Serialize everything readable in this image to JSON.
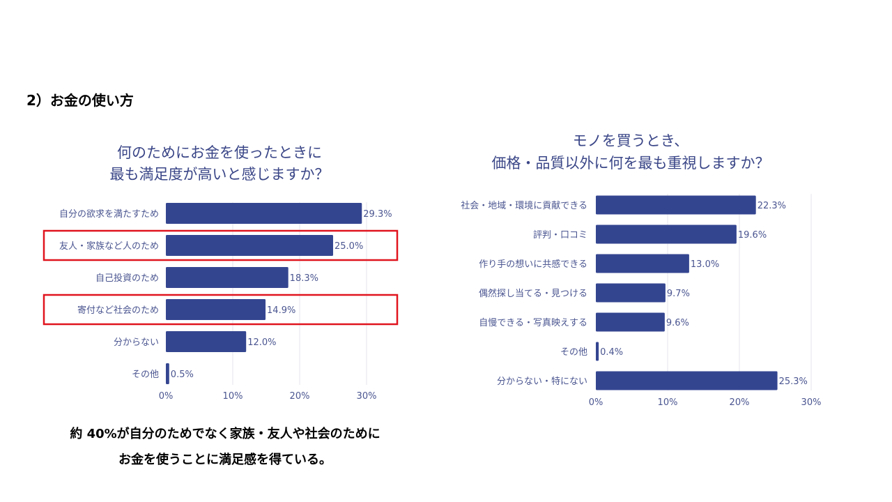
{
  "heading": "2）お金の使い方",
  "footer": {
    "line1": "約 40%が自分のためでなく家族・友人や社会のために",
    "line2": "お金を使うことに満足感を得ている。"
  },
  "colors": {
    "bar": "#344590",
    "highlight": "#e0141e",
    "grid": "#e4e6ee"
  },
  "chart_data": [
    {
      "type": "bar",
      "orientation": "horizontal",
      "title": [
        "何のためにお金を使ったときに",
        "最も満足度が高いと感じますか？"
      ],
      "categories": [
        "自分の欲求を満たすため",
        "友人・家族など人のため",
        "自己投資のため",
        "寄付など社会のため",
        "分からない",
        "その他"
      ],
      "values": [
        29.3,
        25.0,
        18.3,
        14.9,
        12.0,
        0.5
      ],
      "value_labels": [
        "29.3%",
        "25.0%",
        "18.3%",
        "14.9%",
        "12.0%",
        "0.5%"
      ],
      "highlighted": [
        1,
        3
      ],
      "xlim": [
        0,
        30
      ],
      "xticks": [
        "0%",
        "10%",
        "20%",
        "30%"
      ],
      "grid": true
    },
    {
      "type": "bar",
      "orientation": "horizontal",
      "title": [
        "モノを買うとき、",
        "価格・品質以外に何を最も重視しますか？"
      ],
      "categories": [
        "社会・地域・環境に貢献できる",
        "評判・口コミ",
        "作り手の想いに共感できる",
        "偶然探し当てる・見つける",
        "自慢できる・写真映えする",
        "その他",
        "分からない・特にない"
      ],
      "values": [
        22.3,
        19.6,
        13.0,
        9.7,
        9.6,
        0.4,
        25.3
      ],
      "value_labels": [
        "22.3%",
        "19.6%",
        "13.0%",
        "9.7%",
        "9.6%",
        "0.4%",
        "25.3%"
      ],
      "highlighted": [],
      "xlim": [
        0,
        30
      ],
      "xticks": [
        "0%",
        "10%",
        "20%",
        "30%"
      ],
      "grid": true
    }
  ]
}
